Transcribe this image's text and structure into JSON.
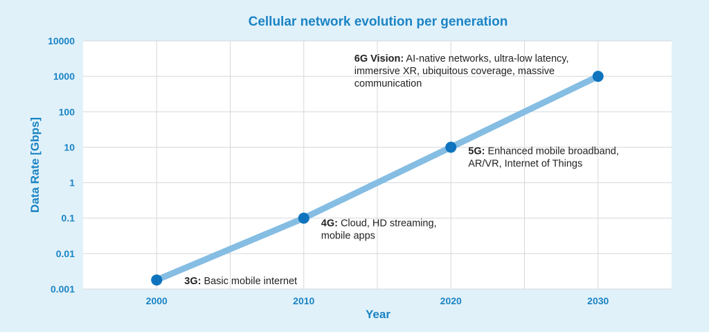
{
  "chart_data": {
    "type": "line",
    "title": "Cellular network evolution per generation",
    "xlabel": "Year",
    "ylabel": "Data Rate [Gbps]",
    "y_scale": "log",
    "ylim": [
      0.001,
      10000
    ],
    "xlim": [
      1995,
      2035
    ],
    "x_ticks": [
      2000,
      2010,
      2020,
      2030
    ],
    "y_ticks": [
      0.001,
      0.01,
      0.1,
      1,
      10,
      100,
      1000,
      10000
    ],
    "x_tick_labels": [
      "2000",
      "2010",
      "2020",
      "2030"
    ],
    "y_tick_labels": [
      "0.001",
      "0.01",
      "0.1",
      "1",
      "10",
      "100",
      "1000",
      "10000"
    ],
    "grid": true,
    "legend": "none",
    "colors": {
      "line": "#85bde3",
      "marker": "#0f74bd",
      "text_accent": "#1a84c4",
      "plot_bg": "#ffffff",
      "page_bg": "#e1f1fa"
    },
    "points": [
      {
        "x": 2000,
        "y": 0.0018,
        "label_bold": "3G:",
        "label_lines": [
          " Basic mobile internet"
        ]
      },
      {
        "x": 2010,
        "y": 0.1,
        "label_bold": "4G:",
        "label_lines": [
          " Cloud, HD streaming,",
          "mobile apps"
        ]
      },
      {
        "x": 2020,
        "y": 10,
        "label_bold": "5G:",
        "label_lines": [
          " Enhanced mobile broadband,",
          "AR/VR, Internet of Things"
        ]
      },
      {
        "x": 2030,
        "y": 1000,
        "label_bold": "6G Vision:",
        "label_lines": [
          " AI-native networks, ultra-low latency,",
          "immersive XR, ubiquitous coverage, massive",
          "communication"
        ]
      }
    ]
  }
}
